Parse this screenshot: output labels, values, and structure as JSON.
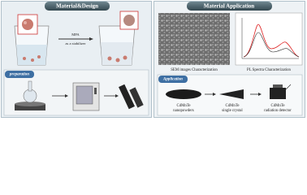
{
  "left": {
    "title": "Material&Design",
    "arrow_label_top": "MPA",
    "arrow_label_bottom": "as a stabilizer",
    "section": "preparation"
  },
  "right": {
    "title": "Material Application",
    "captions": [
      "SEM images Characterization",
      "PL Spectra Characterization"
    ],
    "section": "Application",
    "items": [
      {
        "name": "CdMnTe",
        "desc": "nanopowders"
      },
      {
        "name": "CdMnTe",
        "desc": "single crystal"
      },
      {
        "name": "CdMnTe",
        "desc": "radiation detector"
      }
    ]
  }
}
